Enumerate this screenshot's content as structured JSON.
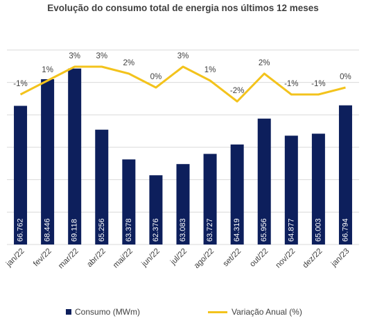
{
  "chart_data": {
    "type": "bar+line",
    "title": "Evolução do consumo total de energia nos últimos 12 meses",
    "categories": [
      "jan/22",
      "fev/22",
      "mar/22",
      "abr/22",
      "mai/22",
      "jun/22",
      "jul/22",
      "ago/22",
      "set/22",
      "out/22",
      "nov/22",
      "dez/22",
      "jan/23"
    ],
    "series": [
      {
        "name": "Consumo (MWm)",
        "type": "bar",
        "values": [
          66762,
          68446,
          69118,
          65256,
          63378,
          62376,
          63083,
          63727,
          64319,
          65956,
          64877,
          65003,
          66794
        ],
        "labels": [
          "66.762",
          "68.446",
          "69.118",
          "65.256",
          "63.378",
          "62.376",
          "63.083",
          "63.727",
          "64.319",
          "65.956",
          "64.877",
          "65.003",
          "66.794"
        ]
      },
      {
        "name": "Variação Anual (%)",
        "type": "line",
        "values": [
          -1,
          1,
          3,
          3,
          2,
          0,
          3,
          1,
          -2,
          2,
          -1,
          -1,
          0
        ],
        "labels": [
          "-1%",
          "1%",
          "3%",
          "3%",
          "2%",
          "0%",
          "3%",
          "1%",
          "-2%",
          "2%",
          "-1%",
          "-1%",
          "0%"
        ]
      }
    ],
    "gridlines": true,
    "legend_position": "bottom"
  },
  "colors": {
    "bar": "#0d1f5c",
    "line": "#f3c31c",
    "grid": "#d9d9d9",
    "text": "#404040"
  }
}
